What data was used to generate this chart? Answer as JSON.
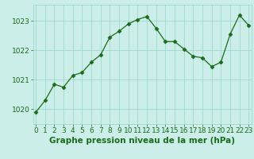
{
  "x": [
    0,
    1,
    2,
    3,
    4,
    5,
    6,
    7,
    8,
    9,
    10,
    11,
    12,
    13,
    14,
    15,
    16,
    17,
    18,
    19,
    20,
    21,
    22,
    23
  ],
  "y": [
    1019.9,
    1020.3,
    1020.85,
    1020.75,
    1021.15,
    1021.25,
    1021.6,
    1021.85,
    1022.45,
    1022.65,
    1022.9,
    1023.05,
    1023.15,
    1022.75,
    1022.3,
    1022.3,
    1022.05,
    1021.8,
    1021.75,
    1021.45,
    1021.6,
    1022.55,
    1023.2,
    1022.85
  ],
  "line_color": "#1a6b1a",
  "marker": "D",
  "marker_size": 2.5,
  "bg_color": "#cceee8",
  "grid_color": "#99d4cc",
  "xlabel": "Graphe pression niveau de la mer (hPa)",
  "xlabel_fontsize": 7.5,
  "tick_fontsize": 6.5,
  "ylim": [
    1019.5,
    1023.55
  ],
  "yticks": [
    1020,
    1021,
    1022,
    1023
  ],
  "xticks": [
    0,
    1,
    2,
    3,
    4,
    5,
    6,
    7,
    8,
    9,
    10,
    11,
    12,
    13,
    14,
    15,
    16,
    17,
    18,
    19,
    20,
    21,
    22,
    23
  ],
  "xlim": [
    -0.3,
    23.3
  ]
}
